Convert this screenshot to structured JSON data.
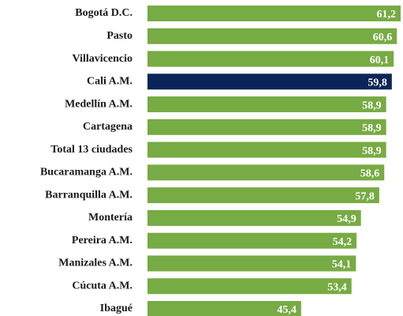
{
  "chart_data": {
    "type": "bar",
    "orientation": "horizontal",
    "categories": [
      "Bogotá D.C.",
      "Pasto",
      "Villavicencio",
      "Cali A.M.",
      "Medellín A.M.",
      "Cartagena",
      "Total 13 ciudades",
      "Bucaramanga A.M.",
      "Barranquilla A.M.",
      "Montería",
      "Pereira A.M.",
      "Manizales A.M.",
      "Cúcuta A.M.",
      "Ibagué"
    ],
    "values": [
      61.2,
      60.6,
      60.1,
      59.8,
      58.9,
      58.9,
      58.9,
      58.6,
      57.8,
      54.9,
      54.2,
      54.1,
      53.4,
      45.4
    ],
    "value_labels": [
      "61,2",
      "60,6",
      "60,1",
      "59,8",
      "58,9",
      "58,9",
      "58,9",
      "58,6",
      "57,8",
      "54,9",
      "54,2",
      "54,1",
      "53,4",
      "45,4"
    ],
    "colors": [
      "#77ab43",
      "#77ab43",
      "#77ab43",
      "#0c2559",
      "#77ab43",
      "#77ab43",
      "#77ab43",
      "#77ab43",
      "#77ab43",
      "#77ab43",
      "#77ab43",
      "#77ab43",
      "#77ab43",
      "#77ab43"
    ],
    "xlim": [
      21,
      61.5
    ]
  }
}
